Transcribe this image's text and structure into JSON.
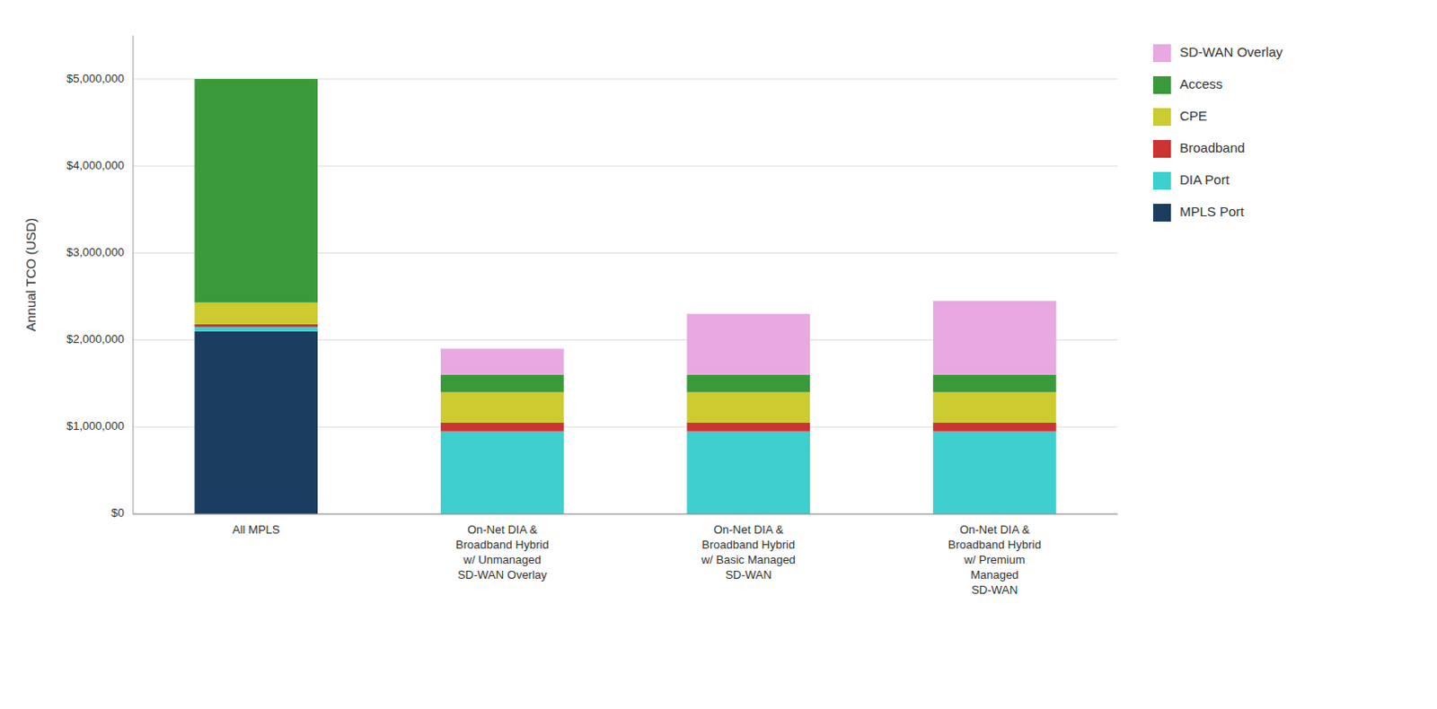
{
  "chart_data": {
    "type": "bar",
    "stacked": true,
    "categories": [
      "All MPLS",
      "On-Net DIA &\nBroadband Hybrid\nw/ Unmanaged\nSD-WAN Overlay",
      "On-Net DIA &\nBroadband Hybrid\nw/ Basic Managed\nSD-WAN",
      "On-Net DIA &\nBroadband Hybrid\nw/ Premium\nManaged\nSD-WAN"
    ],
    "series": [
      {
        "name": "MPLS Port",
        "color": "#1b3d5f",
        "values": [
          2100000,
          0,
          0,
          0
        ]
      },
      {
        "name": "DIA Port",
        "color": "#3ecfcf",
        "values": [
          50000,
          950000,
          950000,
          950000
        ]
      },
      {
        "name": "Broadband",
        "color": "#cc3333",
        "values": [
          30000,
          100000,
          100000,
          100000
        ]
      },
      {
        "name": "CPE",
        "color": "#cccb30",
        "values": [
          250000,
          350000,
          350000,
          350000
        ]
      },
      {
        "name": "Access",
        "color": "#3a9a3a",
        "values": [
          2570000,
          200000,
          200000,
          200000
        ]
      },
      {
        "name": "SD-WAN Overlay",
        "color": "#e8a8e0",
        "values": [
          0,
          300000,
          700000,
          850000
        ]
      }
    ],
    "ylabel": "Annual TCO (USD)",
    "ylim": [
      0,
      5500000
    ],
    "yticks": [
      {
        "value": 0,
        "label": "$0"
      },
      {
        "value": 1000000,
        "label": "$1,000,000"
      },
      {
        "value": 2000000,
        "label": "$2,000,000"
      },
      {
        "value": 3000000,
        "label": "$3,000,000"
      },
      {
        "value": 4000000,
        "label": "$4,000,000"
      },
      {
        "value": 5000000,
        "label": "$5,000,000"
      }
    ],
    "grid": true,
    "legend": "upper right"
  }
}
